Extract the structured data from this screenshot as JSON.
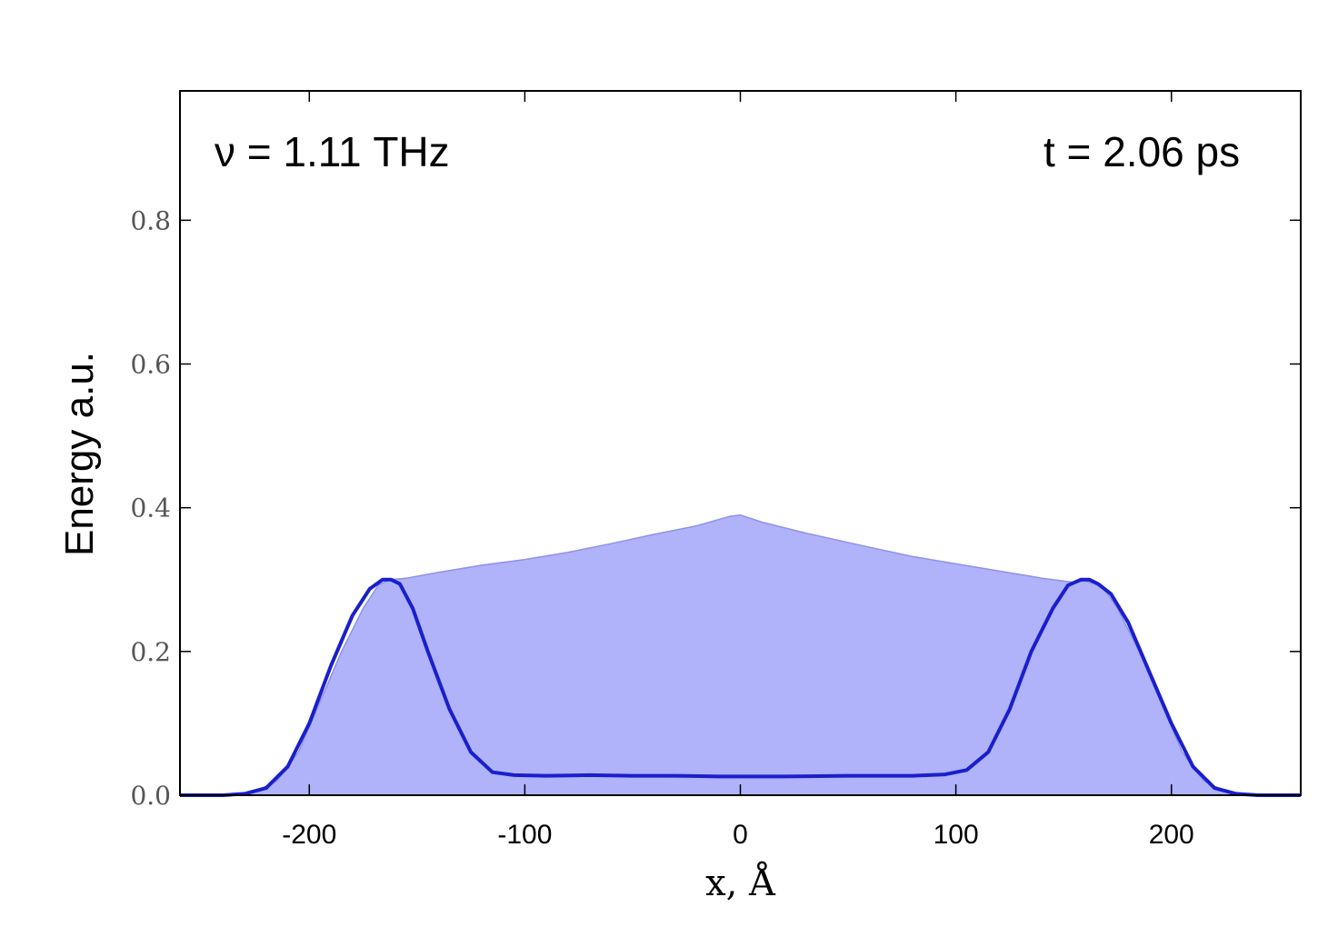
{
  "chart_data": {
    "type": "area",
    "title": "",
    "xlabel": "x, Å",
    "ylabel": "Energy a.u.",
    "xlim": [
      -260,
      260
    ],
    "ylim": [
      0,
      0.98
    ],
    "x_ticks": [
      -200,
      -100,
      0,
      100,
      200
    ],
    "x_tick_labels": [
      "-200",
      "-100",
      "0",
      "100",
      "200"
    ],
    "y_ticks": [
      0.0,
      0.2,
      0.4,
      0.6,
      0.8
    ],
    "y_tick_labels": [
      "0.0",
      "0.2",
      "0.4",
      "0.6",
      "0.8"
    ],
    "grid": false,
    "annotations": [
      "ν = 1.11 THz",
      "t = 2.06 ps"
    ],
    "colors": {
      "fill": "#b0b2fa",
      "line": "#1a1fcc"
    },
    "series": [
      {
        "kind": "filled-area",
        "x": [
          -260,
          -235,
          -225,
          -215,
          -205,
          -195,
          -185,
          -175,
          -168,
          -163,
          -155,
          -140,
          -120,
          -100,
          -80,
          -60,
          -40,
          -20,
          -5,
          0,
          10,
          30,
          60,
          80,
          100,
          120,
          140,
          155,
          160,
          168,
          175,
          185,
          195,
          205,
          215,
          225,
          235,
          260
        ],
        "y": [
          0.0,
          0.001,
          0.005,
          0.02,
          0.06,
          0.13,
          0.2,
          0.26,
          0.292,
          0.3,
          0.302,
          0.31,
          0.32,
          0.328,
          0.338,
          0.35,
          0.363,
          0.375,
          0.388,
          0.39,
          0.38,
          0.365,
          0.345,
          0.332,
          0.322,
          0.312,
          0.302,
          0.296,
          0.298,
          0.29,
          0.26,
          0.2,
          0.13,
          0.06,
          0.02,
          0.005,
          0.001,
          0.0
        ]
      },
      {
        "kind": "line",
        "x": [
          -260,
          -240,
          -230,
          -220,
          -210,
          -200,
          -190,
          -180,
          -172,
          -166,
          -162,
          -158,
          -152,
          -145,
          -135,
          -125,
          -115,
          -105,
          -90,
          -70,
          -50,
          -30,
          -10,
          0,
          20,
          50,
          80,
          95,
          105,
          115,
          125,
          135,
          145,
          152,
          158,
          162,
          166,
          172,
          180,
          190,
          200,
          210,
          220,
          230,
          240,
          260
        ],
        "y": [
          0.0,
          0.0,
          0.002,
          0.01,
          0.04,
          0.1,
          0.18,
          0.25,
          0.287,
          0.3,
          0.3,
          0.294,
          0.26,
          0.2,
          0.12,
          0.06,
          0.032,
          0.028,
          0.027,
          0.028,
          0.027,
          0.027,
          0.026,
          0.026,
          0.026,
          0.027,
          0.027,
          0.029,
          0.035,
          0.06,
          0.12,
          0.2,
          0.26,
          0.292,
          0.3,
          0.3,
          0.294,
          0.28,
          0.24,
          0.17,
          0.1,
          0.04,
          0.01,
          0.002,
          0.0,
          0.0
        ]
      }
    ]
  }
}
